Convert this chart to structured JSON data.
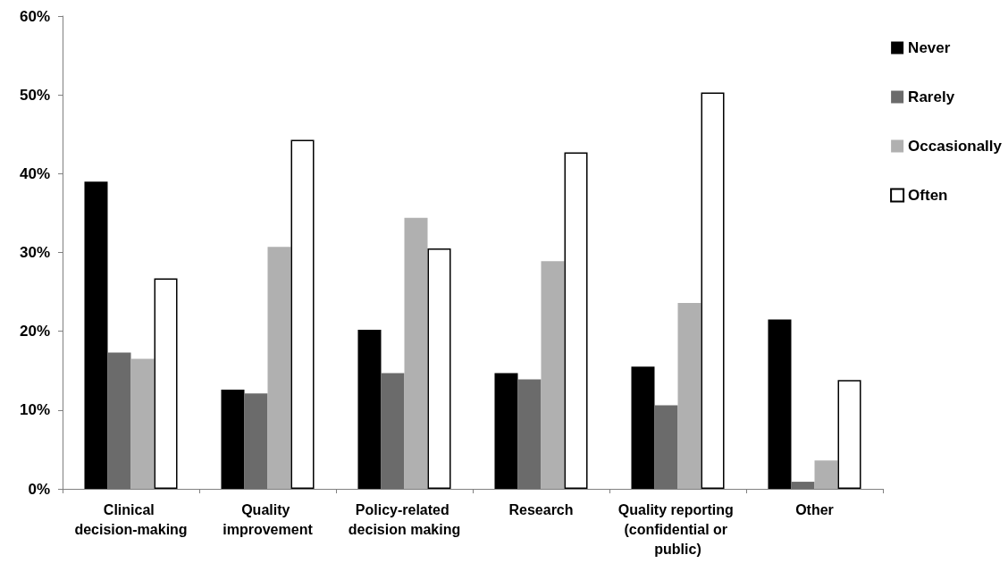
{
  "chart_data": {
    "type": "bar",
    "categories": [
      "Clinical decision-making",
      "Quality improvement",
      "Policy-related decision making",
      "Research",
      "Quality reporting (confidential or public)",
      "Other"
    ],
    "series": [
      {
        "name": "Never",
        "color": "#000000",
        "values": [
          39.0,
          12.6,
          20.2,
          14.7,
          15.5,
          21.5
        ]
      },
      {
        "name": "Rarely",
        "color": "#6b6b6b",
        "values": [
          17.3,
          12.1,
          14.7,
          13.9,
          10.6,
          0.9
        ]
      },
      {
        "name": "Occasionally",
        "color": "#b0b0b0",
        "values": [
          16.5,
          30.7,
          34.4,
          28.9,
          23.6,
          3.6
        ]
      },
      {
        "name": "Often",
        "color": "#ffffff",
        "values": [
          26.7,
          44.3,
          30.5,
          42.7,
          50.3,
          13.8
        ]
      }
    ],
    "ylim": [
      0,
      60
    ],
    "yticks": [
      {
        "value": 0,
        "label": "0%"
      },
      {
        "value": 10,
        "label": "10%"
      },
      {
        "value": 20,
        "label": "20%"
      },
      {
        "value": 30,
        "label": "30%"
      },
      {
        "value": 40,
        "label": "40%"
      },
      {
        "value": 50,
        "label": "50%"
      },
      {
        "value": 60,
        "label": "60%"
      }
    ],
    "grid": false,
    "legend": "top right"
  }
}
